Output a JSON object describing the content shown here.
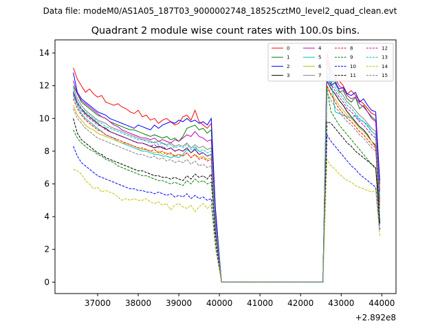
{
  "suptitle": "Data file: modeM0/AS1A05_187T03_9000002748_18525cztM0_level2_quad_clean.evt",
  "chart_data": {
    "type": "line",
    "title": "Quadrant 2 module wise count rates with 100.0s bins.",
    "xlabel": "",
    "ylabel": "",
    "x_offset_label": "+2.892e8",
    "xlim": [
      35950,
      44350
    ],
    "ylim": [
      -0.7,
      14.8
    ],
    "xticks": [
      37000,
      38000,
      39000,
      40000,
      41000,
      42000,
      43000,
      44000
    ],
    "yticks": [
      0,
      2,
      4,
      6,
      8,
      10,
      12,
      14
    ],
    "legend_position": "top-right",
    "segment1": {
      "start": 36400,
      "step": 100,
      "count": 36
    },
    "gap": {
      "start": 40050,
      "end": 42500,
      "value": 0
    },
    "segment2": {
      "start": 42550,
      "step": 100,
      "count": 15
    },
    "series": [
      {
        "name": "0",
        "color": "#ff0000",
        "dash": "solid",
        "a": [
          13.1,
          12.4,
          12.0,
          11.6,
          11.8,
          11.5,
          11.3,
          11.4,
          11.0,
          10.9,
          10.8,
          10.9,
          10.7,
          10.6,
          10.4,
          10.3,
          10.5,
          10.1,
          10.2,
          9.9,
          10.0,
          9.7,
          9.9,
          10.0,
          9.8,
          9.6,
          9.7,
          10.1,
          10.2,
          9.9,
          10.5,
          9.8,
          9.6,
          9.4,
          9.7,
          4.5
        ],
        "b": [
          0.0,
          14.0,
          12.9,
          12.6,
          12.3,
          12.0,
          11.5,
          11.7,
          11.4,
          11.1,
          10.9,
          10.6,
          10.3,
          10.2,
          6.0
        ]
      },
      {
        "name": "1",
        "color": "#008000",
        "dash": "solid",
        "a": [
          12.0,
          11.5,
          11.0,
          10.8,
          10.6,
          10.4,
          10.2,
          10.1,
          10.0,
          9.8,
          9.7,
          9.6,
          9.5,
          9.4,
          9.3,
          9.3,
          9.2,
          9.1,
          9.0,
          8.9,
          9.0,
          8.9,
          8.8,
          8.9,
          8.7,
          8.8,
          8.6,
          8.9,
          9.4,
          9.5,
          9.6,
          9.3,
          9.4,
          9.1,
          9.3,
          4.2
        ],
        "b": [
          0.0,
          12.8,
          12.2,
          12.4,
          11.6,
          11.7,
          11.2,
          11.0,
          11.3,
          10.6,
          10.8,
          10.4,
          10.1,
          9.9,
          5.6
        ]
      },
      {
        "name": "2",
        "color": "#0000ff",
        "dash": "solid",
        "a": [
          12.8,
          11.6,
          11.2,
          11.0,
          10.8,
          10.6,
          10.4,
          10.3,
          10.2,
          10.0,
          9.9,
          9.8,
          9.7,
          9.6,
          9.5,
          9.4,
          9.6,
          9.5,
          9.4,
          9.3,
          9.6,
          9.4,
          9.6,
          9.7,
          9.8,
          9.7,
          9.9,
          9.8,
          10.0,
          9.8,
          9.9,
          9.7,
          9.8,
          9.6,
          10.0,
          4.6
        ],
        "b": [
          0.0,
          12.5,
          12.0,
          12.2,
          11.8,
          11.9,
          11.5,
          11.4,
          11.6,
          11.0,
          11.2,
          10.8,
          10.5,
          10.4,
          6.2
        ]
      },
      {
        "name": "3",
        "color": "#000000",
        "dash": "solid",
        "a": [
          11.6,
          11.0,
          10.6,
          10.3,
          10.1,
          9.9,
          9.7,
          9.5,
          9.4,
          9.2,
          9.1,
          9.0,
          8.9,
          8.8,
          8.7,
          8.6,
          8.5,
          8.5,
          8.4,
          8.3,
          8.2,
          8.3,
          8.2,
          8.1,
          8.2,
          8.0,
          8.1,
          8.0,
          8.2,
          7.9,
          8.1,
          7.8,
          7.9,
          7.7,
          7.8,
          3.8
        ],
        "b": [
          0.0,
          12.3,
          11.8,
          11.5,
          11.1,
          10.8,
          10.4,
          10.1,
          9.8,
          9.5,
          9.3,
          9.0,
          8.6,
          8.3,
          3.6
        ]
      },
      {
        "name": "4",
        "color": "#bf00bf",
        "dash": "solid",
        "a": [
          12.3,
          11.5,
          11.1,
          10.9,
          10.7,
          10.5,
          10.3,
          10.1,
          10.0,
          9.8,
          9.6,
          9.5,
          9.3,
          9.2,
          9.1,
          9.0,
          8.9,
          8.8,
          8.8,
          8.7,
          8.8,
          8.6,
          8.7,
          8.6,
          8.5,
          8.7,
          8.6,
          8.8,
          9.0,
          8.9,
          9.2,
          8.9,
          8.8,
          8.6,
          8.7,
          4.1
        ],
        "b": [
          0.0,
          13.6,
          12.7,
          12.5,
          12.0,
          11.8,
          11.4,
          11.2,
          11.3,
          10.9,
          10.7,
          10.4,
          10.0,
          9.8,
          5.5
        ]
      },
      {
        "name": "5",
        "color": "#00bfbf",
        "dash": "solid",
        "a": [
          11.4,
          10.8,
          10.3,
          10.0,
          9.8,
          9.6,
          9.4,
          9.2,
          9.0,
          8.9,
          8.8,
          8.6,
          8.5,
          8.4,
          8.3,
          8.2,
          8.1,
          8.0,
          8.0,
          7.9,
          7.8,
          7.8,
          7.7,
          7.7,
          7.6,
          7.7,
          7.6,
          7.8,
          8.1,
          7.9,
          8.2,
          8.0,
          7.9,
          7.7,
          7.8,
          3.7
        ],
        "b": [
          0.0,
          13.2,
          12.4,
          10.4,
          10.3,
          10.2,
          10.1,
          10.0,
          10.2,
          9.9,
          9.8,
          9.6,
          9.2,
          9.0,
          5.0
        ]
      },
      {
        "name": "6",
        "color": "#bfbf00",
        "dash": "solid",
        "a": [
          10.8,
          10.2,
          9.9,
          9.6,
          9.4,
          9.3,
          9.1,
          9.0,
          8.9,
          8.8,
          8.7,
          8.6,
          8.5,
          8.5,
          8.4,
          8.3,
          8.2,
          8.1,
          8.1,
          8.0,
          7.9,
          8.0,
          7.8,
          7.9,
          7.8,
          7.7,
          7.8,
          7.7,
          7.9,
          7.6,
          7.8,
          7.6,
          7.7,
          7.5,
          7.6,
          3.6
        ],
        "b": [
          0.0,
          11.9,
          11.4,
          11.2,
          10.8,
          10.5,
          10.2,
          10.0,
          9.7,
          9.4,
          9.2,
          8.9,
          8.6,
          8.4,
          4.8
        ]
      },
      {
        "name": "7",
        "color": "#808080",
        "dash": "solid",
        "a": [
          11.9,
          11.2,
          10.8,
          10.5,
          10.3,
          10.1,
          9.9,
          9.8,
          9.7,
          9.5,
          9.4,
          9.3,
          9.2,
          9.1,
          9.0,
          8.9,
          8.8,
          8.7,
          8.7,
          8.6,
          8.5,
          8.6,
          8.5,
          8.4,
          8.5,
          8.3,
          8.4,
          8.3,
          8.5,
          8.2,
          8.4,
          8.2,
          8.3,
          8.1,
          8.2,
          3.9
        ],
        "b": [
          0.0,
          13.4,
          12.6,
          12.1,
          11.7,
          11.4,
          11.0,
          10.8,
          10.5,
          10.2,
          10.0,
          9.7,
          9.4,
          9.2,
          5.2
        ]
      },
      {
        "name": "8",
        "color": "#ff0000",
        "dash": "dashed",
        "a": [
          11.2,
          10.6,
          10.2,
          9.9,
          9.7,
          9.5,
          9.3,
          9.2,
          9.0,
          8.9,
          8.8,
          8.7,
          8.6,
          8.5,
          8.4,
          8.3,
          8.2,
          8.2,
          8.1,
          8.0,
          8.1,
          7.9,
          8.0,
          7.8,
          7.9,
          7.7,
          7.8,
          7.7,
          7.9,
          7.6,
          7.8,
          7.5,
          7.6,
          7.4,
          7.5,
          3.5
        ],
        "b": [
          0.0,
          12.0,
          11.5,
          11.0,
          10.6,
          10.3,
          10.0,
          9.8,
          9.5,
          9.2,
          9.0,
          8.7,
          8.4,
          8.2,
          4.6
        ]
      },
      {
        "name": "9",
        "color": "#008000",
        "dash": "dashed",
        "a": [
          9.3,
          8.8,
          8.5,
          8.3,
          8.1,
          8.0,
          7.8,
          7.7,
          7.5,
          7.4,
          7.3,
          7.1,
          7.0,
          6.9,
          6.8,
          6.7,
          6.6,
          6.5,
          6.5,
          6.4,
          6.3,
          6.2,
          6.2,
          6.1,
          6.0,
          6.1,
          6.0,
          5.9,
          6.2,
          6.0,
          6.3,
          6.1,
          6.2,
          6.0,
          6.1,
          2.9
        ],
        "b": [
          0.0,
          11.8,
          10.4,
          10.0,
          9.6,
          9.3,
          9.0,
          8.7,
          8.4,
          8.1,
          7.8,
          7.5,
          7.2,
          6.9,
          3.8
        ]
      },
      {
        "name": "10",
        "color": "#0000ff",
        "dash": "dashed",
        "a": [
          8.3,
          7.7,
          7.3,
          7.1,
          6.9,
          6.7,
          6.5,
          6.4,
          6.3,
          6.2,
          6.1,
          6.0,
          5.9,
          5.8,
          5.7,
          5.7,
          5.6,
          5.6,
          5.5,
          5.5,
          5.4,
          5.5,
          5.4,
          5.3,
          5.4,
          5.2,
          5.3,
          5.2,
          5.4,
          5.1,
          5.3,
          5.1,
          5.2,
          5.0,
          5.1,
          2.4
        ],
        "b": [
          0.0,
          9.0,
          8.6,
          8.3,
          8.0,
          7.7,
          7.4,
          7.1,
          6.9,
          6.6,
          6.4,
          6.2,
          6.0,
          5.8,
          3.2
        ]
      },
      {
        "name": "11",
        "color": "#000000",
        "dash": "dashed",
        "a": [
          10.0,
          9.1,
          8.7,
          8.5,
          8.3,
          8.1,
          7.9,
          7.8,
          7.6,
          7.5,
          7.4,
          7.3,
          7.2,
          7.1,
          7.0,
          6.9,
          6.8,
          6.8,
          6.7,
          6.6,
          6.5,
          6.5,
          6.4,
          6.4,
          6.3,
          6.4,
          6.3,
          6.2,
          6.5,
          6.3,
          6.6,
          6.4,
          6.5,
          6.3,
          6.6,
          3.1
        ],
        "b": [
          0.0,
          9.8,
          9.7,
          9.4,
          9.1,
          8.8,
          8.5,
          8.3,
          8.0,
          7.8,
          7.6,
          7.4,
          7.2,
          7.0,
          3.5
        ]
      },
      {
        "name": "12",
        "color": "#bf00bf",
        "dash": "dashed",
        "a": [
          11.5,
          10.9,
          10.5,
          10.2,
          10.0,
          9.8,
          9.6,
          9.5,
          9.3,
          9.2,
          9.1,
          9.0,
          8.9,
          8.8,
          8.7,
          8.6,
          8.5,
          8.5,
          8.4,
          8.3,
          8.4,
          8.2,
          8.3,
          8.1,
          8.2,
          8.0,
          8.1,
          8.0,
          8.2,
          7.9,
          8.1,
          7.8,
          7.9,
          7.7,
          7.8,
          3.7
        ],
        "b": [
          0.0,
          12.6,
          12.1,
          11.7,
          11.3,
          11.0,
          10.6,
          10.4,
          10.1,
          9.8,
          9.6,
          9.3,
          9.0,
          8.8,
          4.9
        ]
      },
      {
        "name": "13",
        "color": "#00bfbf",
        "dash": "dashed",
        "a": [
          11.7,
          11.0,
          10.6,
          10.4,
          10.2,
          10.0,
          9.8,
          9.7,
          9.5,
          9.4,
          9.3,
          9.2,
          9.1,
          9.0,
          8.9,
          8.8,
          8.7,
          8.7,
          8.6,
          8.5,
          8.6,
          8.4,
          8.5,
          8.3,
          8.4,
          8.2,
          8.3,
          8.2,
          8.4,
          8.1,
          8.3,
          8.0,
          8.1,
          7.9,
          8.0,
          3.8
        ],
        "b": [
          0.0,
          12.9,
          12.3,
          11.9,
          11.5,
          11.2,
          10.8,
          10.6,
          10.3,
          10.0,
          9.8,
          9.5,
          9.2,
          9.0,
          5.1
        ]
      },
      {
        "name": "14",
        "color": "#bfbf00",
        "dash": "dashed",
        "a": [
          6.9,
          6.8,
          6.6,
          6.2,
          6.0,
          5.7,
          5.8,
          5.5,
          5.6,
          5.5,
          5.4,
          5.2,
          5.0,
          5.1,
          5.0,
          5.1,
          5.0,
          5.0,
          5.1,
          4.9,
          4.8,
          4.9,
          4.7,
          4.8,
          4.4,
          4.7,
          4.8,
          4.6,
          4.5,
          4.7,
          4.3,
          4.6,
          4.8,
          4.5,
          4.7,
          2.1
        ],
        "b": [
          0.0,
          7.5,
          7.1,
          6.9,
          6.6,
          6.4,
          6.2,
          6.1,
          5.9,
          5.8,
          5.7,
          5.6,
          5.5,
          5.6,
          2.8
        ]
      },
      {
        "name": "15",
        "color": "#808080",
        "dash": "dashed",
        "a": [
          10.6,
          10.0,
          9.7,
          9.4,
          9.2,
          9.0,
          8.8,
          8.7,
          8.6,
          8.5,
          8.4,
          8.3,
          8.2,
          8.1,
          8.0,
          7.9,
          7.8,
          7.8,
          7.7,
          7.6,
          7.7,
          7.5,
          7.6,
          7.4,
          7.5,
          7.3,
          7.4,
          7.3,
          7.5,
          7.2,
          7.4,
          7.1,
          7.2,
          7.0,
          7.1,
          3.4
        ],
        "b": [
          0.0,
          11.6,
          11.1,
          10.7,
          10.4,
          10.1,
          9.8,
          9.6,
          9.3,
          9.0,
          8.8,
          8.5,
          8.2,
          8.0,
          4.4
        ]
      }
    ]
  }
}
